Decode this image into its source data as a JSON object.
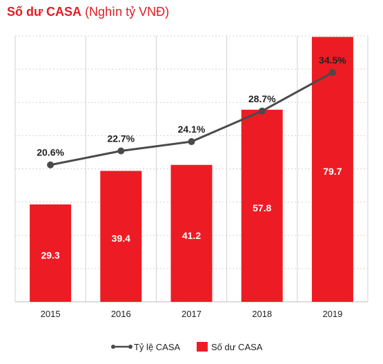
{
  "title": {
    "main": "Số dư CASA",
    "unit": "(Nghìn tỷ VNĐ)"
  },
  "colors": {
    "bar": "#ed1c24",
    "line": "#4a4a4a",
    "title": "#e31b23",
    "grid": "#d0d0d0"
  },
  "chart_data": {
    "type": "bar",
    "categories": [
      "2015",
      "2016",
      "2017",
      "2018",
      "2019"
    ],
    "series": [
      {
        "name": "Số dư CASA",
        "type": "bar",
        "values": [
          29.3,
          39.4,
          41.2,
          57.8,
          79.7
        ],
        "labels": [
          "29.3",
          "39.4",
          "41.2",
          "57.8",
          "79.7"
        ]
      },
      {
        "name": "Tỷ lệ CASA",
        "type": "line",
        "values": [
          20.6,
          22.7,
          24.1,
          28.7,
          34.5
        ],
        "labels": [
          "20.6%",
          "22.7%",
          "24.1%",
          "28.7%",
          "34.5%"
        ]
      }
    ],
    "ylim": [
      0,
      80
    ],
    "line_ylim": [
      0,
      40
    ],
    "grid": true,
    "legend": "bottom-center"
  }
}
